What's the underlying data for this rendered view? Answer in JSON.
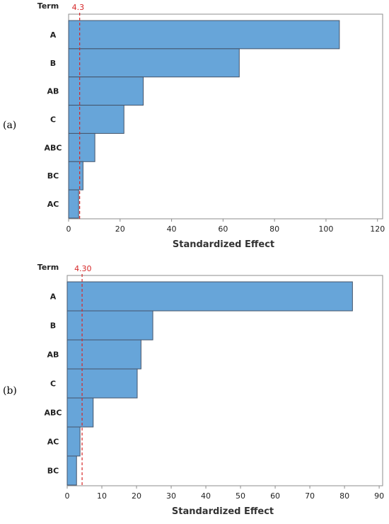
{
  "chart_data": [
    {
      "panel_label": "(a)",
      "type": "bar",
      "orientation": "horizontal",
      "ylabel": "Term",
      "xlabel": "Standardized Effect",
      "categories": [
        "A",
        "B",
        "AB",
        "C",
        "ABC",
        "BC",
        "AC"
      ],
      "values": [
        105.2,
        66.3,
        29.0,
        21.5,
        10.2,
        5.6,
        3.9
      ],
      "reference_line": {
        "value": 4.3,
        "label": "4.3"
      },
      "xlim": [
        0,
        122
      ],
      "xticks": [
        0,
        20,
        40,
        60,
        80,
        100,
        120
      ],
      "grid": false,
      "colors": {
        "bar": "#67a5d9",
        "bar_edge": "#44546a",
        "reference": "#d62728"
      }
    },
    {
      "panel_label": "(b)",
      "type": "bar",
      "orientation": "horizontal",
      "ylabel": "Term",
      "xlabel": "Standardized Effect",
      "categories": [
        "A",
        "B",
        "AB",
        "C",
        "ABC",
        "AC",
        "BC"
      ],
      "values": [
        82.3,
        24.7,
        21.3,
        20.2,
        7.5,
        3.7,
        2.7
      ],
      "reference_line": {
        "value": 4.3,
        "label": "4.30"
      },
      "xlim": [
        0,
        91
      ],
      "xticks": [
        0,
        10,
        20,
        30,
        40,
        50,
        60,
        70,
        80,
        90
      ],
      "grid": false,
      "colors": {
        "bar": "#67a5d9",
        "bar_edge": "#44546a",
        "reference": "#d62728"
      }
    }
  ]
}
